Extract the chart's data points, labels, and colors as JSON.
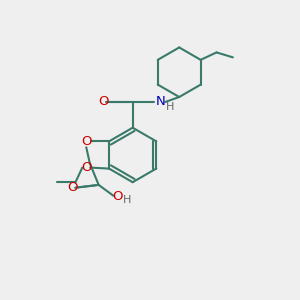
{
  "bg_color": "#efefef",
  "bond_color": "#3a7a6a",
  "o_color": "#cc0000",
  "n_color": "#0000bb",
  "h_color": "#666666",
  "lw": 1.5,
  "fs": 8.5,
  "xlim": [
    0,
    6
  ],
  "ylim": [
    0,
    6
  ]
}
